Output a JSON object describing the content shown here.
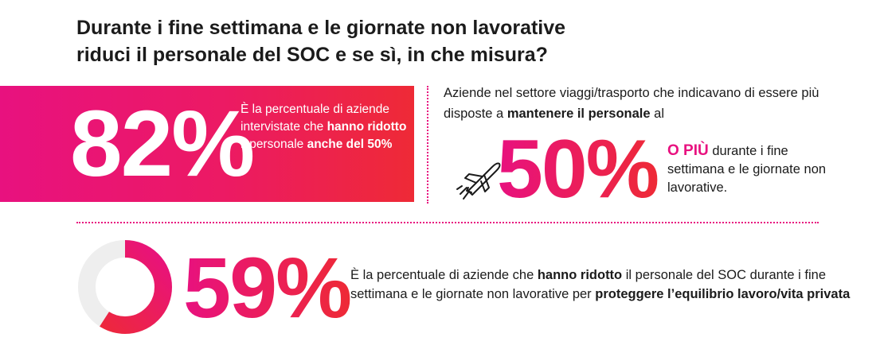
{
  "title": {
    "line1": "Durante i fine settimana e le giornate non lavorative",
    "line2": "riduci il personale del SOC e se sì, in che misura?"
  },
  "stat1": {
    "value": "82%",
    "text_1": "È la percentuale di aziende intervistate che ",
    "bold_1": "hanno ridotto",
    "text_2": " il personale ",
    "bold_2": "anche del 50%"
  },
  "stat2": {
    "intro_1": "Aziende nel settore viaggi/trasporto che indicavano di essere più disposte a ",
    "intro_bold": "mantenere il personale",
    "intro_2": " al",
    "value": "50%",
    "highlight": "O PIÙ",
    "note": " durante i fine settimana e le giornate non lavorative.",
    "icon": "airplane-icon"
  },
  "stat3": {
    "value": "59%",
    "donut_fraction": 0.59,
    "text_1": "È la percentuale di aziende che ",
    "bold_1": "hanno ridotto",
    "text_2": " il personale del SOC durante i fine settimana e le giornate non lavorative per ",
    "bold_2": "proteggere l’equilibrio lavoro/vita privata"
  },
  "colors": {
    "accent_pink": "#e8117f",
    "accent_red": "#ee2a36",
    "donut_track": "#eeeeee"
  }
}
